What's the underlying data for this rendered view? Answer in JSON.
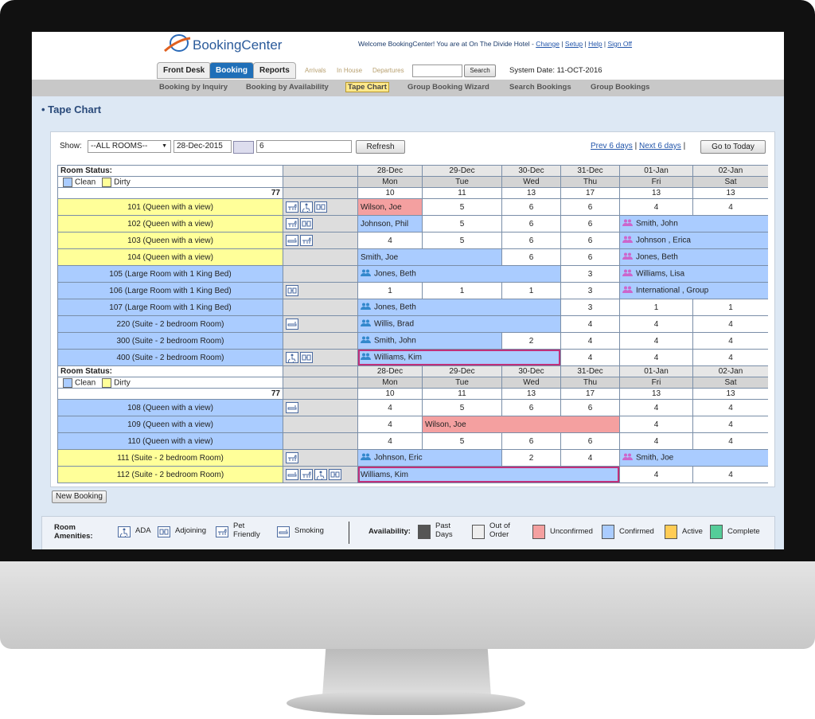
{
  "header": {
    "logo": "BookingCenter",
    "welcome": "Welcome BookingCenter! You are at On The Divide Hotel -",
    "links": [
      "Change",
      "Setup",
      "Help",
      "Sign Off"
    ],
    "system_date": "System Date: 11-OCT-2016"
  },
  "tabs": {
    "items": [
      "Front Desk",
      "Booking",
      "Reports"
    ],
    "active": 1
  },
  "quick": {
    "items": [
      "Arrivals",
      "In House",
      "Departures"
    ],
    "search": "Search"
  },
  "subnav": {
    "items": [
      "Booking by Inquiry",
      "Booking by Availability",
      "Tape Chart",
      "Group Booking Wizard",
      "Search Bookings",
      "Group Bookings"
    ],
    "active": 2
  },
  "page_title": "Tape Chart",
  "toolbar": {
    "show_label": "Show:",
    "rooms_select": "--ALL ROOMS--",
    "date": "28-Dec-2015",
    "days": "6",
    "refresh": "Refresh",
    "prev": "Prev 6 days",
    "separator": "|",
    "next": "Next 6 days",
    "today": "Go to Today"
  },
  "room_status_colors": [
    "#aaccff",
    "#ffff99"
  ],
  "sections": [
    {
      "label": "Room Status:",
      "clean": "Clean",
      "dirty": "Dirty",
      "total": 77,
      "dates": [
        "28-Dec",
        "29-Dec",
        "30-Dec",
        "31-Dec",
        "01-Jan",
        "02-Jan"
      ],
      "days": [
        "Mon",
        "Tue",
        "Wed",
        "Thu",
        "Fri",
        "Sat"
      ],
      "counts": [
        10,
        11,
        13,
        17,
        13,
        13
      ],
      "rooms": [
        {
          "name": "101 (Queen with a view)",
          "status": 1,
          "amenities": [
            2,
            0,
            1
          ],
          "cells": [
            {
              "guest": "Wilson, Joe",
              "span": 1,
              "state": 2
            },
            5,
            6,
            6,
            4,
            4
          ]
        },
        {
          "name": "102 (Queen with a view)",
          "status": 1,
          "amenities": [
            2,
            1
          ],
          "cells": [
            {
              "guest": "Johnson, Phil",
              "span": 1,
              "state": 3
            },
            5,
            6,
            6,
            {
              "guest": "Smith, John",
              "span": 2,
              "state": 3,
              "icon": "#cc66cc"
            }
          ]
        },
        {
          "name": "103 (Queen with a view)",
          "status": 1,
          "amenities": [
            3,
            2
          ],
          "cells": [
            4,
            5,
            6,
            6,
            {
              "guest": "Johnson , Erica",
              "span": 2,
              "state": 3,
              "icon": "#cc66cc"
            }
          ]
        },
        {
          "name": "104 (Queen with a view)",
          "status": 1,
          "amenities": [],
          "cells": [
            {
              "guest": "Smith, Joe",
              "span": 2,
              "state": 3
            },
            6,
            6,
            {
              "guest": "Jones, Beth",
              "span": 2,
              "state": 3,
              "icon": "#cc66cc"
            }
          ]
        },
        {
          "name": "105 (Large Room with 1 King Bed)",
          "status": 0,
          "amenities": [],
          "cells": [
            {
              "guest": "Jones, Beth",
              "span": 3,
              "state": 3,
              "icon": "#3388cc"
            },
            3,
            {
              "guest": "Williams, Lisa",
              "span": 2,
              "state": 3,
              "icon": "#cc66cc"
            }
          ]
        },
        {
          "name": "106 (Large Room with 1 King Bed)",
          "status": 0,
          "amenities": [
            1
          ],
          "cells": [
            1,
            1,
            1,
            3,
            {
              "guest": "International , Group",
              "span": 2,
              "state": 3,
              "icon": "#cc66cc"
            }
          ]
        },
        {
          "name": "107 (Large Room with 1 King Bed)",
          "status": 0,
          "amenities": [],
          "cells": [
            {
              "guest": "Jones, Beth",
              "span": 3,
              "state": 3,
              "icon": "#3388cc"
            },
            3,
            1,
            1
          ]
        },
        {
          "name": "220 (Suite - 2 bedroom Room)",
          "status": 0,
          "amenities": [
            3
          ],
          "cells": [
            {
              "guest": "Willis, Brad",
              "span": 3,
              "state": 3,
              "icon": "#3388cc"
            },
            4,
            4,
            4
          ]
        },
        {
          "name": "300 (Suite - 2 bedroom Room)",
          "status": 0,
          "amenities": [],
          "cells": [
            {
              "guest": "Smith, John",
              "span": 2,
              "state": 3,
              "icon": "#3388cc"
            },
            2,
            4,
            4,
            4
          ]
        },
        {
          "name": "400 (Suite - 2 bedroom Room)",
          "status": 0,
          "amenities": [
            0,
            1
          ],
          "cells": [
            {
              "guest": "Williams, Kim",
              "span": 3,
              "state": 3,
              "icon": "#3388cc",
              "outline": true
            },
            4,
            4,
            4
          ]
        }
      ]
    },
    {
      "label": "Room Status:",
      "clean": "Clean",
      "dirty": "Dirty",
      "total": 77,
      "dates": [
        "28-Dec",
        "29-Dec",
        "30-Dec",
        "31-Dec",
        "01-Jan",
        "02-Jan"
      ],
      "days": [
        "Mon",
        "Tue",
        "Wed",
        "Thu",
        "Fri",
        "Sat"
      ],
      "counts": [
        10,
        11,
        13,
        17,
        13,
        13
      ],
      "rooms": [
        {
          "name": "108 (Queen with a view)",
          "status": 0,
          "amenities": [
            3
          ],
          "cells": [
            4,
            5,
            6,
            6,
            4,
            4
          ]
        },
        {
          "name": "109 (Queen with a view)",
          "status": 0,
          "amenities": [],
          "cells": [
            4,
            {
              "guest": "Wilson, Joe",
              "span": 3,
              "state": 2
            },
            4,
            4
          ]
        },
        {
          "name": "110 (Queen with a view)",
          "status": 0,
          "amenities": [],
          "cells": [
            4,
            5,
            6,
            6,
            4,
            4
          ]
        },
        {
          "name": "111 (Suite - 2 bedroom Room)",
          "status": 1,
          "amenities": [
            2
          ],
          "cells": [
            {
              "guest": "Johnson, Eric",
              "span": 2,
              "state": 3,
              "icon": "#3388cc"
            },
            2,
            4,
            {
              "guest": "Smith, Joe",
              "span": 2,
              "state": 3,
              "icon": "#cc66cc"
            }
          ]
        },
        {
          "name": "112 (Suite - 2 bedroom Room)",
          "status": 1,
          "amenities": [
            3,
            2,
            0,
            1
          ],
          "cells": [
            {
              "guest": "Williams, Kim",
              "span": 4,
              "state": 3,
              "outline": true
            },
            4,
            4
          ]
        }
      ]
    }
  ],
  "new_booking": "New Booking",
  "legend": {
    "amenities_label": "Room Amenities:",
    "amenities": [
      "ADA",
      "Adjoining",
      "Pet Friendly",
      "Smoking"
    ],
    "availability_label": "Availability:",
    "availability": [
      "Past Days",
      "Out of Order",
      "Unconfirmed",
      "Confirmed",
      "Active",
      "Complete"
    ],
    "availability_colors": [
      "#555555",
      "#eeeeee",
      "#f4a0a0",
      "#aaccff",
      "#ffcc55",
      "#55cc99"
    ]
  }
}
